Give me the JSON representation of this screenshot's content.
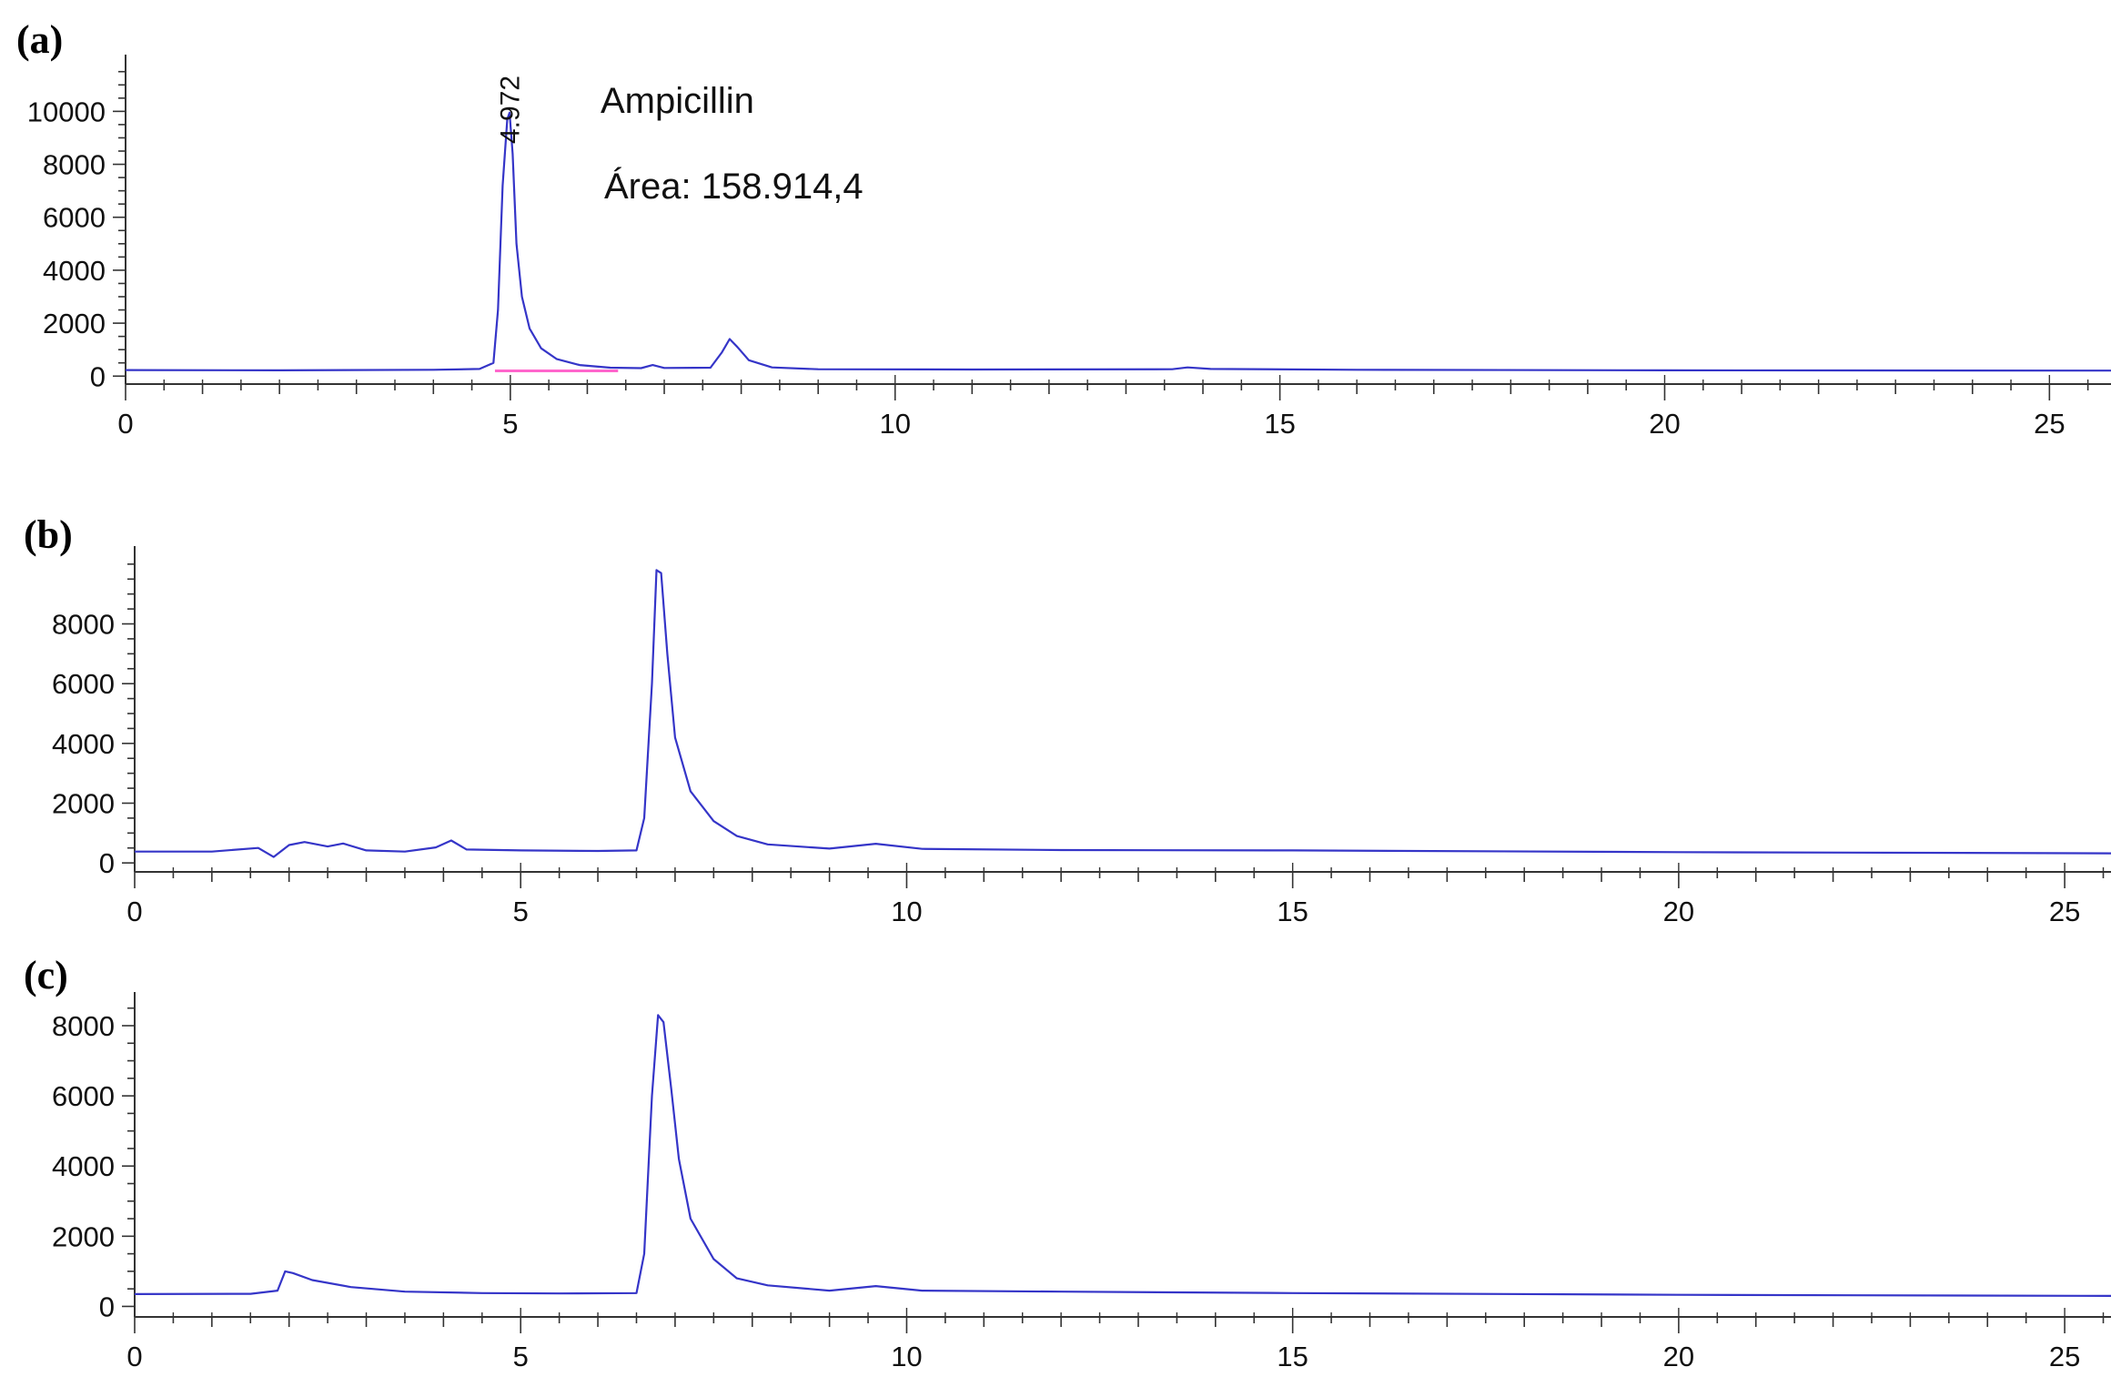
{
  "colors": {
    "trace": "#3535c8",
    "baseline": "#ff66cc",
    "axis": "#333333"
  },
  "chart_data": [
    {
      "panel": "(a)",
      "type": "line",
      "xlim": [
        0,
        25.8
      ],
      "ylim": [
        -300,
        11800
      ],
      "x_ticks": [
        0,
        5,
        10,
        15,
        20,
        25
      ],
      "y_ticks": [
        0,
        2000,
        4000,
        6000,
        8000,
        10000
      ],
      "annotations": [
        "Ampicillin",
        "Área: 158.914,4"
      ],
      "peak_label": {
        "text": "4.972",
        "x": 4.972,
        "y": 10000
      },
      "integration_baseline": {
        "x": [
          4.8,
          6.4
        ],
        "y": [
          200,
          200
        ]
      },
      "series": [
        {
          "x": [
            0,
            2,
            4,
            4.6,
            4.78,
            4.84,
            4.9,
            4.96,
            4.99,
            5.03,
            5.08,
            5.15,
            5.25,
            5.4,
            5.6,
            5.9,
            6.3,
            6.7,
            6.85,
            7.0,
            7.6,
            7.75,
            7.85,
            7.95,
            8.1,
            8.4,
            9,
            11,
            13.6,
            13.8,
            14.1,
            16,
            20,
            25.8
          ],
          "y": [
            230,
            220,
            240,
            270,
            500,
            2500,
            7200,
            9700,
            9950,
            8400,
            5000,
            3000,
            1800,
            1050,
            650,
            420,
            320,
            300,
            420,
            310,
            320,
            900,
            1400,
            1100,
            600,
            330,
            260,
            250,
            260,
            330,
            270,
            240,
            220,
            210
          ]
        }
      ]
    },
    {
      "panel": "(b)",
      "type": "line",
      "xlim": [
        0,
        25.6
      ],
      "ylim": [
        -300,
        10300
      ],
      "x_ticks": [
        0,
        5,
        10,
        15,
        20,
        25
      ],
      "y_ticks": [
        0,
        2000,
        4000,
        6000,
        8000
      ],
      "series": [
        {
          "x": [
            0,
            1.0,
            1.6,
            1.8,
            2.0,
            2.2,
            2.5,
            2.7,
            3.0,
            3.5,
            3.9,
            4.1,
            4.3,
            5,
            6,
            6.5,
            6.6,
            6.7,
            6.76,
            6.82,
            6.9,
            7.0,
            7.2,
            7.5,
            7.8,
            8.2,
            9,
            9.6,
            10.2,
            12,
            15,
            20,
            25.6
          ],
          "y": [
            380,
            380,
            500,
            200,
            600,
            700,
            550,
            650,
            420,
            380,
            520,
            750,
            450,
            420,
            400,
            420,
            1500,
            6000,
            9800,
            9700,
            7000,
            4200,
            2400,
            1400,
            900,
            620,
            480,
            640,
            470,
            430,
            420,
            360,
            320
          ]
        }
      ]
    },
    {
      "panel": "(c)",
      "type": "line",
      "xlim": [
        0,
        25.6
      ],
      "ylim": [
        -300,
        8700
      ],
      "x_ticks": [
        0,
        5,
        10,
        15,
        20,
        25
      ],
      "y_ticks": [
        0,
        2000,
        4000,
        6000,
        8000
      ],
      "series": [
        {
          "x": [
            0,
            1.5,
            1.85,
            1.95,
            2.05,
            2.3,
            2.8,
            3.5,
            4.5,
            5.5,
            6.5,
            6.6,
            6.7,
            6.78,
            6.85,
            6.95,
            7.05,
            7.2,
            7.5,
            7.8,
            8.2,
            9,
            9.6,
            10.2,
            12,
            15,
            20,
            25.6
          ],
          "y": [
            350,
            360,
            450,
            1000,
            950,
            750,
            550,
            420,
            380,
            370,
            380,
            1500,
            6000,
            8300,
            8100,
            6200,
            4200,
            2500,
            1350,
            800,
            600,
            450,
            580,
            450,
            420,
            380,
            330,
            300
          ]
        }
      ]
    }
  ]
}
